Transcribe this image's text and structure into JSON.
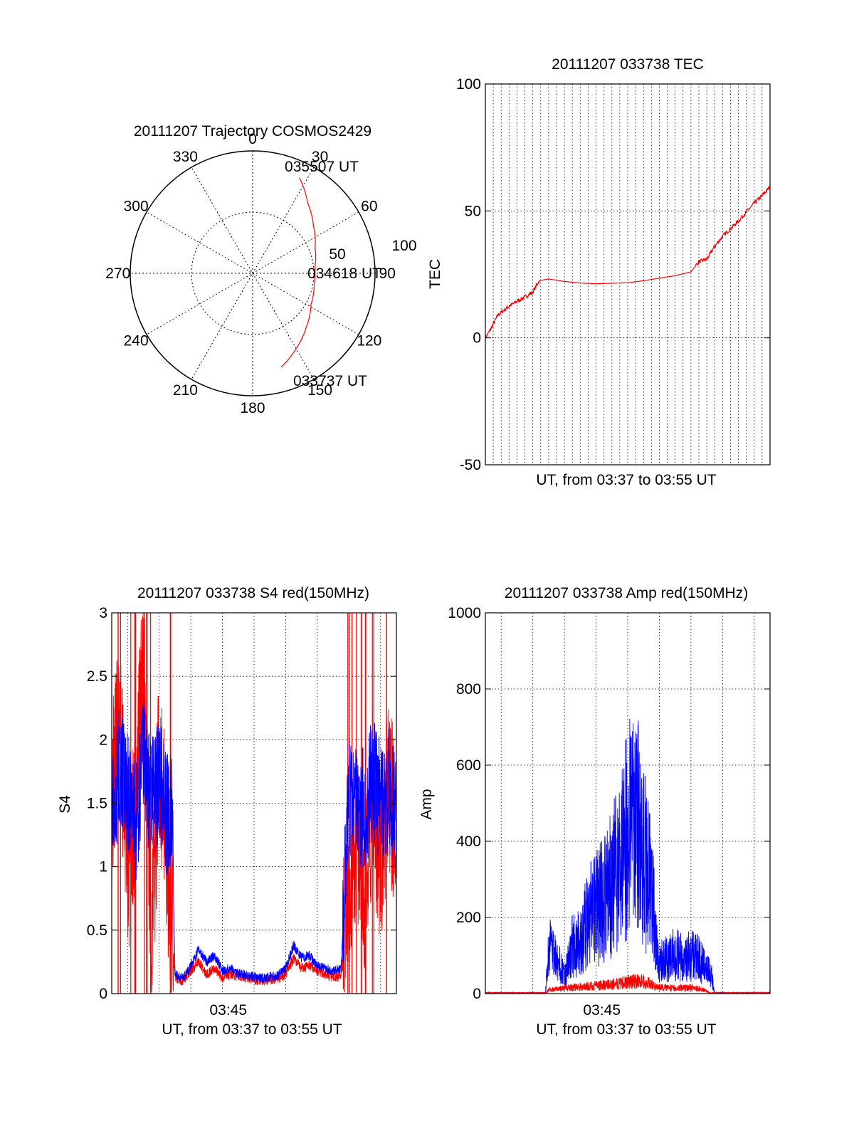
{
  "chart_data": [
    {
      "type": "polar",
      "title": "20111207 Trajectory COSMOS2429",
      "angle_labels": [
        "0",
        "30",
        "60",
        "90",
        "120",
        "150",
        "180",
        "210",
        "240",
        "270",
        "300",
        "330"
      ],
      "radial_labels": [
        "50",
        "100"
      ],
      "rlim": [
        0,
        100
      ],
      "grid": true,
      "series": [
        {
          "color": "#ff0000",
          "points": [
            {
              "az": 163,
              "el": 80
            },
            {
              "az": 150,
              "el": 71
            },
            {
              "az": 135,
              "el": 62
            },
            {
              "az": 118,
              "el": 54
            },
            {
              "az": 100,
              "el": 51
            },
            {
              "az": 85,
              "el": 51
            },
            {
              "az": 68,
              "el": 55
            },
            {
              "az": 52,
              "el": 63
            },
            {
              "az": 38,
              "el": 73
            },
            {
              "az": 26,
              "el": 87
            }
          ]
        }
      ],
      "annotations": [
        {
          "text": "035507 UT",
          "az": 27,
          "el": 98
        },
        {
          "text": "034618 UT",
          "az": 96,
          "el": 55
        },
        {
          "text": "033737 UT",
          "az": 158,
          "el": 99
        }
      ]
    },
    {
      "type": "line",
      "title": "20111207 033738 TEC",
      "xlabel": "UT, from 03:37 to 03:55 UT",
      "ylabel": "TEC",
      "xlim": [
        0,
        18
      ],
      "ylim": [
        -50,
        100
      ],
      "yticks": [
        "-50",
        "0",
        "50",
        "100"
      ],
      "xgrid_step_min": 0.5,
      "grid": true,
      "series": [
        {
          "color": "#ff0000",
          "x": [
            0.0,
            0.3,
            0.8,
            1.5,
            2.2,
            3.0,
            3.4,
            4.0,
            5.0,
            6.0,
            7.0,
            8.0,
            9.0,
            10.0,
            11.0,
            12.0,
            13.0,
            13.5,
            14.0,
            14.5,
            15.0,
            15.5,
            16.0,
            16.5,
            17.0,
            17.5,
            18.0
          ],
          "y": [
            0,
            3,
            9,
            12.5,
            15,
            18,
            22.5,
            23.2,
            22.2,
            21.6,
            21.3,
            21.5,
            21.7,
            22.5,
            23.5,
            24.5,
            26,
            30,
            31,
            36,
            40,
            43,
            46,
            49.5,
            53,
            56,
            59.5
          ]
        }
      ]
    },
    {
      "type": "line",
      "title": "20111207 033738 S4 red(150MHz)",
      "xlabel": "UT, from 03:37 to 03:55 UT",
      "ylabel": "S4",
      "xlim": [
        0,
        18
      ],
      "ylim": [
        0,
        3
      ],
      "xticks": [
        {
          "x": 8,
          "label": "03:45"
        }
      ],
      "yticks": [
        "0",
        "0.5",
        "1",
        "1.5",
        "2",
        "2.5",
        "3"
      ],
      "grid": true,
      "series": [
        {
          "color": "#ff0000",
          "x": [
            0.0,
            0.5,
            1.0,
            1.5,
            2.0,
            2.5,
            3.0,
            3.5,
            3.8,
            4.0,
            4.5,
            5.0,
            5.5,
            6.0,
            6.5,
            7.0,
            7.5,
            8.0,
            9.0,
            9.5,
            10.0,
            10.5,
            11.0,
            11.5,
            12.0,
            12.5,
            13.0,
            13.5,
            14.0,
            14.5,
            15.0,
            15.5,
            16.0,
            16.5,
            17.0,
            17.5,
            18.0
          ],
          "y": [
            1.5,
            2.4,
            0.8,
            1.6,
            2.6,
            0.4,
            1.9,
            1.1,
            0.5,
            0.12,
            0.1,
            0.18,
            0.25,
            0.15,
            0.2,
            0.12,
            0.15,
            0.14,
            0.11,
            0.1,
            0.11,
            0.12,
            0.15,
            0.28,
            0.2,
            0.22,
            0.18,
            0.15,
            0.13,
            0.14,
            0.9,
            1.3,
            0.7,
            1.6,
            1.0,
            1.7,
            1.2
          ]
        },
        {
          "color": "#0000ff",
          "x": [
            0.0,
            0.5,
            1.0,
            1.5,
            2.0,
            2.5,
            3.0,
            3.5,
            3.8,
            4.0,
            4.5,
            5.0,
            5.5,
            6.0,
            6.5,
            7.0,
            7.5,
            8.0,
            9.0,
            9.5,
            10.0,
            10.5,
            11.0,
            11.5,
            12.0,
            12.5,
            13.0,
            13.5,
            14.0,
            14.5,
            15.0,
            15.5,
            16.0,
            16.5,
            17.0,
            17.5,
            18.0
          ],
          "y": [
            1.4,
            1.8,
            1.6,
            1.3,
            1.9,
            1.5,
            1.7,
            1.4,
            1.5,
            0.15,
            0.12,
            0.22,
            0.35,
            0.25,
            0.3,
            0.18,
            0.2,
            0.16,
            0.13,
            0.12,
            0.13,
            0.14,
            0.2,
            0.38,
            0.28,
            0.3,
            0.22,
            0.2,
            0.18,
            0.2,
            1.5,
            1.6,
            1.4,
            1.7,
            1.5,
            1.6,
            1.4
          ]
        }
      ]
    },
    {
      "type": "line",
      "title": "20111207 033738 Amp red(150MHz)",
      "xlabel": "UT, from 03:37 to 03:55 UT",
      "ylabel": "Amp",
      "xlim": [
        0,
        18
      ],
      "ylim": [
        0,
        1000
      ],
      "xticks": [
        {
          "x": 8,
          "label": "03:45"
        }
      ],
      "yticks": [
        "0",
        "200",
        "400",
        "600",
        "800",
        "1000"
      ],
      "grid": true,
      "series": [
        {
          "color": "#ff0000",
          "x": [
            0.0,
            3.8,
            4.0,
            5.0,
            6.0,
            7.0,
            8.0,
            9.0,
            10.0,
            10.5,
            11.0,
            12.0,
            13.0,
            13.7,
            14.3,
            18.0
          ],
          "y": [
            0,
            0,
            12,
            18,
            22,
            26,
            30,
            38,
            42,
            30,
            20,
            18,
            20,
            15,
            0,
            0
          ]
        },
        {
          "color": "#0000ff",
          "x": [
            0.0,
            3.8,
            4.0,
            4.5,
            5.0,
            5.5,
            6.0,
            6.5,
            7.0,
            7.5,
            8.0,
            8.5,
            9.0,
            9.5,
            10.0,
            10.5,
            11.0,
            11.5,
            12.0,
            12.5,
            13.0,
            13.5,
            14.0,
            14.3,
            14.5,
            18.0
          ],
          "y": [
            0,
            0,
            150,
            110,
            60,
            150,
            170,
            240,
            270,
            300,
            350,
            410,
            510,
            550,
            450,
            310,
            100,
            110,
            130,
            110,
            120,
            110,
            80,
            60,
            0,
            0
          ]
        }
      ]
    }
  ]
}
